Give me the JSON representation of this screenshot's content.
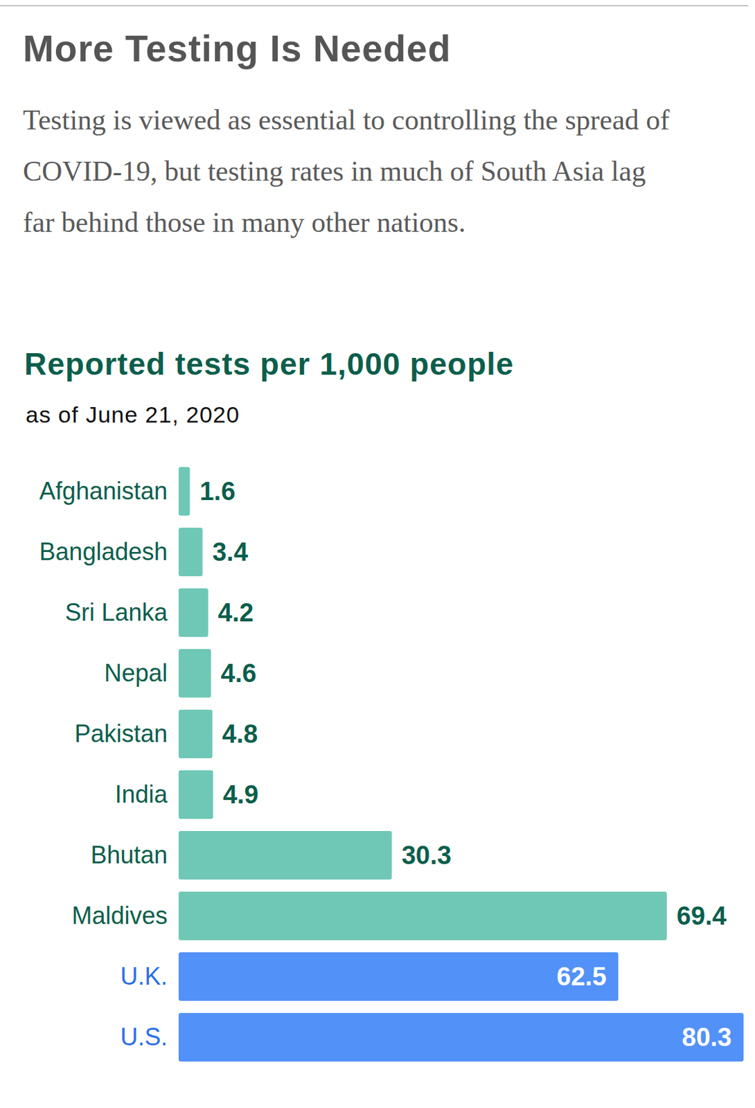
{
  "chart_data": {
    "type": "bar",
    "orientation": "horizontal",
    "title": "More Testing Is Needed",
    "subtitle": "Testing is viewed as essential to controlling the spread of COVID-19, but testing rates in much of South Asia lag far behind those in many other nations.",
    "xlabel": "Reported tests per 1,000 people",
    "note": "as of June 21, 2020",
    "categories": [
      "Afghanistan",
      "Bangladesh",
      "Sri Lanka",
      "Nepal",
      "Pakistan",
      "India",
      "Bhutan",
      "Maldives",
      "U.K.",
      "U.S."
    ],
    "values": [
      1.6,
      3.4,
      4.2,
      4.6,
      4.8,
      4.9,
      30.3,
      69.4,
      62.5,
      80.3
    ],
    "colors": [
      "#6fc8b5",
      "#6fc8b5",
      "#6fc8b5",
      "#6fc8b5",
      "#6fc8b5",
      "#6fc8b5",
      "#6fc8b5",
      "#6fc8b5",
      "#5291f8",
      "#5291f8"
    ],
    "xlim": [
      0,
      80.3
    ],
    "data_labels": true,
    "tick_labels": false,
    "grid": false
  }
}
